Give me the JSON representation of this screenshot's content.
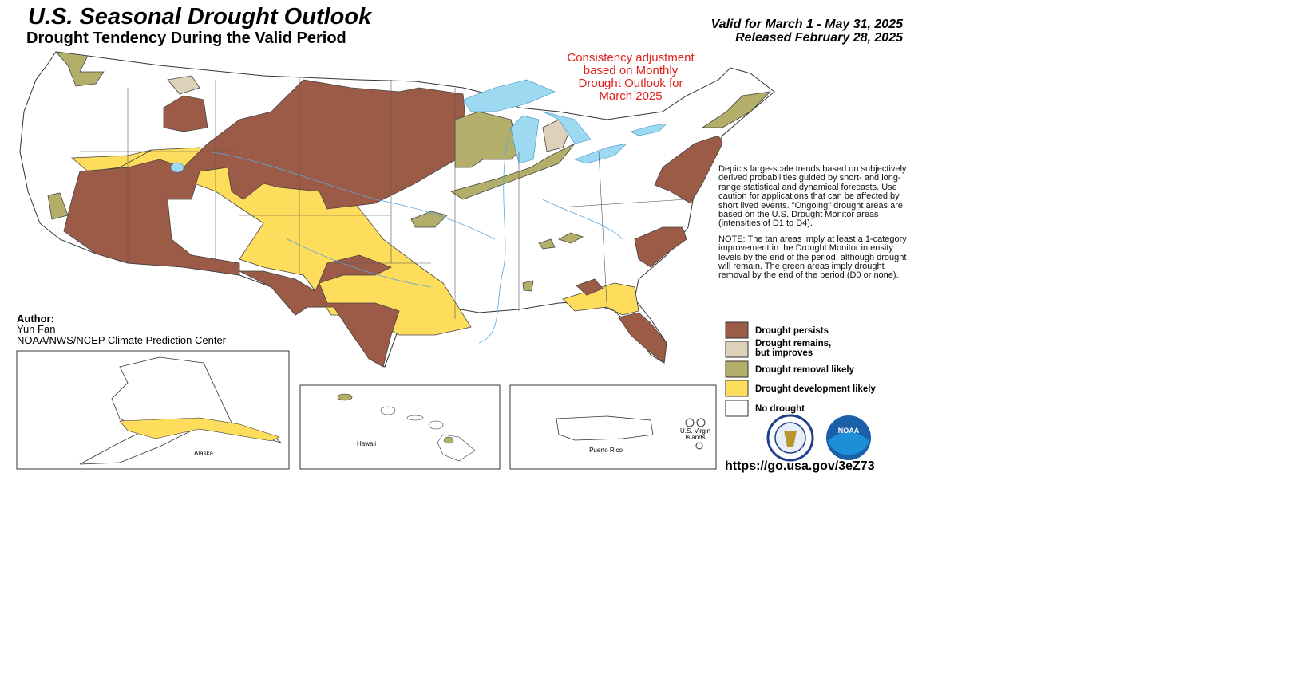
{
  "header": {
    "title": "U.S. Seasonal Drought Outlook",
    "subtitle": "Drought Tendency During the Valid Period",
    "valid": "Valid for March 1 - May 31, 2025",
    "released": "Released February 28, 2025"
  },
  "map_note": {
    "lines": [
      "Consistency adjustment",
      "based on Monthly",
      "Drought Outlook for",
      "March 2025"
    ]
  },
  "description": {
    "paragraphs": [
      "Depicts large-scale trends based on subjectively derived probabilities guided by short- and long-range statistical and dynamical forecasts. Use caution for applications that can be affected by short lived events. \"Ongoing\" drought areas are based on the U.S. Drought Monitor areas (intensities of D1 to D4).",
      "NOTE: The tan areas imply at least a 1-category improvement in the Drought Monitor intensity levels by the end of the period, although drought will remain. The green areas imply drought removal by the end of the period (D0 or none)."
    ]
  },
  "legend": {
    "items": [
      {
        "lines": [
          "Drought persists"
        ],
        "color": "#9c5b46"
      },
      {
        "lines": [
          "Drought remains,",
          "but improves"
        ],
        "color": "#ddd1b9"
      },
      {
        "lines": [
          "Drought removal likely"
        ],
        "color": "#b4ae6b"
      },
      {
        "lines": [
          "Drought development likely"
        ],
        "color": "#fedc5c"
      },
      {
        "lines": [
          "No drought"
        ],
        "color": "#ffffff"
      }
    ]
  },
  "author": {
    "heading": "Author:",
    "name": "Yun Fan",
    "organization": "NOAA/NWS/NCEP Climate Prediction Center"
  },
  "insets": {
    "alaska": "Alaska",
    "hawaii": "Hawaii",
    "puerto_rico": "Puerto Rico",
    "virgin_islands": [
      "U.S. Virgin",
      "Islands"
    ]
  },
  "logos": {
    "noaa": "NOAA"
  },
  "footer": {
    "url": "https://go.usa.gov/3eZ73"
  }
}
